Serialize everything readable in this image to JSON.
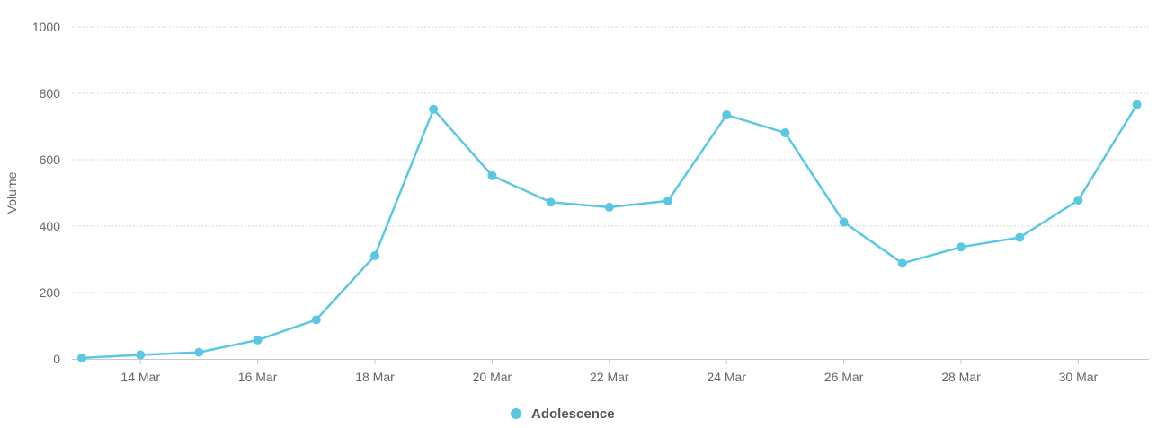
{
  "chart_data": {
    "type": "line",
    "xlabel": "",
    "ylabel": "Volume",
    "ylim": [
      0,
      1000
    ],
    "y_ticks": [
      0,
      200,
      400,
      600,
      800,
      1000
    ],
    "x_tick_labels": [
      "14 Mar",
      "16 Mar",
      "18 Mar",
      "20 Mar",
      "22 Mar",
      "24 Mar",
      "26 Mar",
      "28 Mar",
      "30 Mar"
    ],
    "x_tick_dates": [
      14,
      16,
      18,
      20,
      22,
      24,
      26,
      28,
      30
    ],
    "grid": "horizontal dashed",
    "legend_position": "bottom-center",
    "series": [
      {
        "name": "Adolescence",
        "color": "#5bc8e3",
        "x": [
          "13 Mar",
          "14 Mar",
          "15 Mar",
          "16 Mar",
          "17 Mar",
          "18 Mar",
          "19 Mar",
          "20 Mar",
          "21 Mar",
          "22 Mar",
          "23 Mar",
          "24 Mar",
          "25 Mar",
          "26 Mar",
          "27 Mar",
          "28 Mar",
          "29 Mar",
          "30 Mar",
          "31 Mar"
        ],
        "values": [
          3,
          12,
          20,
          57,
          118,
          311,
          752,
          552,
          472,
          457,
          476,
          735,
          681,
          412,
          288,
          337,
          366,
          478,
          766
        ]
      }
    ]
  }
}
